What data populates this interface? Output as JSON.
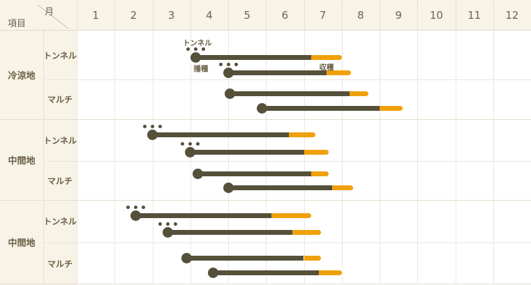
{
  "header": {
    "corner_month": "月",
    "corner_item": "項目",
    "months": [
      "1",
      "2",
      "3",
      "4",
      "5",
      "6",
      "7",
      "8",
      "9",
      "10",
      "11",
      "12"
    ]
  },
  "colors": {
    "background_cream": "#f7f3e7",
    "chart_background": "#ffffff",
    "grid_line": "#eae7de",
    "bar_dark": "#55503a",
    "bar_harvest_orange": "#f0a00c",
    "text_brown": "#6a5f45"
  },
  "chart_data": {
    "type": "gantt",
    "x_axis": {
      "unit": "月",
      "ticks": [
        1,
        2,
        3,
        4,
        5,
        6,
        7,
        8,
        9,
        10,
        11,
        12
      ],
      "range": [
        1,
        13
      ]
    },
    "annotations": {
      "sow": "播種",
      "harvest": "収穫",
      "tunnel_callout": "トンネル"
    },
    "groups": [
      {
        "region": "冷涼地",
        "rows": [
          {
            "method": "トンネル",
            "tunnel_marks": true,
            "bars": [
              {
                "sow_month": 4.15,
                "harvest_start_month": 7.2,
                "harvest_end_month": 8.0,
                "sow_callout": "トンネル",
                "sow_label": "播種"
              },
              {
                "sow_month": 5.0,
                "harvest_start_month": 7.6,
                "harvest_end_month": 8.25,
                "harvest_label": "収穫"
              }
            ]
          },
          {
            "method": "マルチ",
            "tunnel_marks": false,
            "bars": [
              {
                "sow_month": 5.05,
                "harvest_start_month": 8.2,
                "harvest_end_month": 8.7
              },
              {
                "sow_month": 5.9,
                "harvest_start_month": 9.0,
                "harvest_end_month": 9.6
              }
            ]
          }
        ]
      },
      {
        "region": "中間地",
        "rows": [
          {
            "method": "トンネル",
            "tunnel_marks": true,
            "bars": [
              {
                "sow_month": 3.0,
                "harvest_start_month": 6.6,
                "harvest_end_month": 7.3
              },
              {
                "sow_month": 4.0,
                "harvest_start_month": 7.0,
                "harvest_end_month": 7.65
              }
            ]
          },
          {
            "method": "マルチ",
            "tunnel_marks": false,
            "bars": [
              {
                "sow_month": 4.2,
                "harvest_start_month": 7.2,
                "harvest_end_month": 7.65
              },
              {
                "sow_month": 5.0,
                "harvest_start_month": 7.75,
                "harvest_end_month": 8.3
              }
            ]
          }
        ]
      },
      {
        "region": "中間地",
        "rows": [
          {
            "method": "トンネル",
            "tunnel_marks": true,
            "bars": [
              {
                "sow_month": 2.55,
                "harvest_start_month": 6.15,
                "harvest_end_month": 7.2
              },
              {
                "sow_month": 3.4,
                "harvest_start_month": 6.7,
                "harvest_end_month": 7.45
              }
            ]
          },
          {
            "method": "マルチ",
            "tunnel_marks": false,
            "bars": [
              {
                "sow_month": 3.9,
                "harvest_start_month": 7.0,
                "harvest_end_month": 7.45
              },
              {
                "sow_month": 4.6,
                "harvest_start_month": 7.4,
                "harvest_end_month": 8.0
              }
            ]
          }
        ]
      }
    ]
  }
}
